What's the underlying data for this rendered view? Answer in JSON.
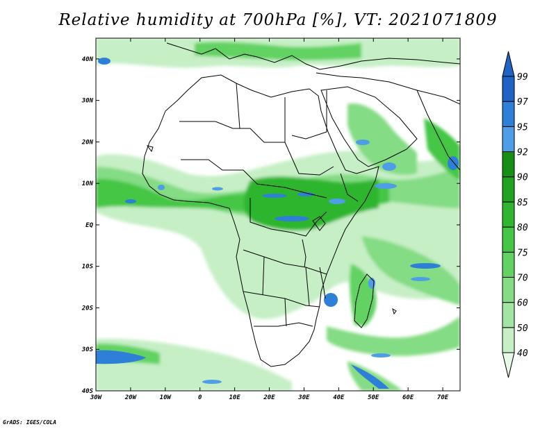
{
  "title": "Relative humidity at 700hPa [%], VT: 2021071809",
  "footer": "GrADS: IGES/COLA",
  "map": {
    "lon_range": [
      -30,
      75
    ],
    "lat_range": [
      -40,
      45
    ],
    "x_ticks": [
      {
        "value": -30,
        "label": "30W"
      },
      {
        "value": -20,
        "label": "20W"
      },
      {
        "value": -10,
        "label": "10W"
      },
      {
        "value": 0,
        "label": "0"
      },
      {
        "value": 10,
        "label": "10E"
      },
      {
        "value": 20,
        "label": "20E"
      },
      {
        "value": 30,
        "label": "30E"
      },
      {
        "value": 40,
        "label": "40E"
      },
      {
        "value": 50,
        "label": "50E"
      },
      {
        "value": 60,
        "label": "60E"
      },
      {
        "value": 70,
        "label": "70E"
      }
    ],
    "y_ticks": [
      {
        "value": 40,
        "label": "40N"
      },
      {
        "value": 30,
        "label": "30N"
      },
      {
        "value": 20,
        "label": "20N"
      },
      {
        "value": 10,
        "label": "10N"
      },
      {
        "value": 0,
        "label": "EQ"
      },
      {
        "value": -10,
        "label": "10S"
      },
      {
        "value": -20,
        "label": "20S"
      },
      {
        "value": -30,
        "label": "30S"
      },
      {
        "value": -40,
        "label": "40S"
      }
    ]
  },
  "colorbar": {
    "levels": [
      "40",
      "50",
      "60",
      "70",
      "75",
      "80",
      "85",
      "90",
      "92",
      "95",
      "97",
      "99"
    ],
    "colors": [
      "#e6f8e6",
      "#c6efc6",
      "#a3e4a3",
      "#84dc84",
      "#62d262",
      "#45c645",
      "#2fb52f",
      "#21a221",
      "#168f16",
      "#4d9ee6",
      "#2e7fd8",
      "#1f63c4"
    ]
  }
}
